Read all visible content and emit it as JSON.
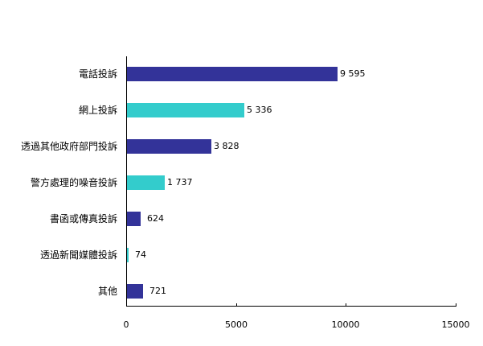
{
  "chart_data": {
    "type": "bar",
    "orientation": "horizontal",
    "title": "",
    "xlabel": "",
    "ylabel": "",
    "xlim": [
      0,
      15000
    ],
    "grid": false,
    "legend": null,
    "categories": [
      "電話投訴",
      "網上投訴",
      "透過其他政府部門投訴",
      "警方處理的噪音投訴",
      "書函或傳真投訴",
      "透過新聞媒體投訴",
      "其他"
    ],
    "values": [
      9595,
      5336,
      3828,
      1737,
      624,
      74,
      721
    ],
    "value_labels": [
      "9 595",
      "5 336",
      "3 828",
      "1 737",
      "624",
      "74",
      "721"
    ],
    "bar_colors": [
      "#333399",
      "#33CCCC",
      "#333399",
      "#33CCCC",
      "#333399",
      "#33CCCC",
      "#333399"
    ],
    "x_ticks": [
      0,
      5000,
      10000,
      15000
    ],
    "x_tick_labels": [
      "0",
      "5000",
      "10000",
      "15000"
    ]
  }
}
